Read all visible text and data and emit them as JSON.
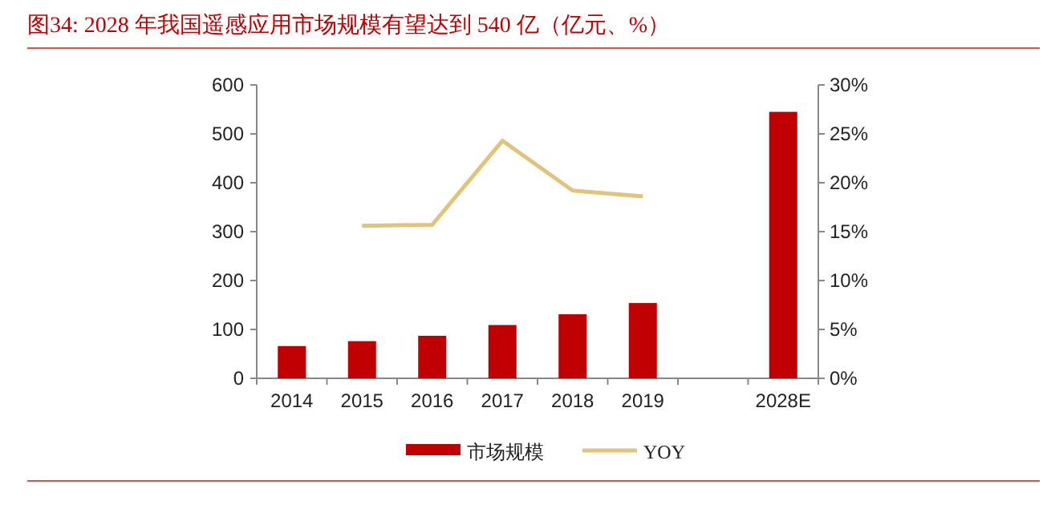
{
  "chart_data": {
    "type": "bar",
    "title": "图34:  2028 年我国遥感应用市场规模有望达到 540 亿（亿元、%）",
    "categories": [
      "2014",
      "2015",
      "2016",
      "2017",
      "2018",
      "2019",
      null,
      "2028E"
    ],
    "series": [
      {
        "name": "市场规模",
        "color": "#c00000",
        "values": [
          66,
          76,
          87,
          109,
          131,
          154,
          null,
          545
        ]
      },
      {
        "name": "YOY",
        "type": "line",
        "axis": "y2",
        "color": "#e0c47c",
        "values": [
          null,
          15.6,
          15.7,
          24.3,
          19.2,
          18.6,
          null,
          null
        ]
      }
    ],
    "ylim": [
      0,
      600
    ],
    "yticks": [
      0,
      100,
      200,
      300,
      400,
      500,
      600
    ],
    "y2lim": [
      0,
      30
    ],
    "y2ticks": [
      {
        "value": 0,
        "label": "0%"
      },
      {
        "value": 5,
        "label": "5%"
      },
      {
        "value": 10,
        "label": "10%"
      },
      {
        "value": 15,
        "label": "15%"
      },
      {
        "value": 20,
        "label": "20%"
      },
      {
        "value": 25,
        "label": "25%"
      },
      {
        "value": 30,
        "label": "30%"
      }
    ],
    "legend": "bottom",
    "grid": false,
    "marker": "none",
    "line_style": "solid"
  }
}
